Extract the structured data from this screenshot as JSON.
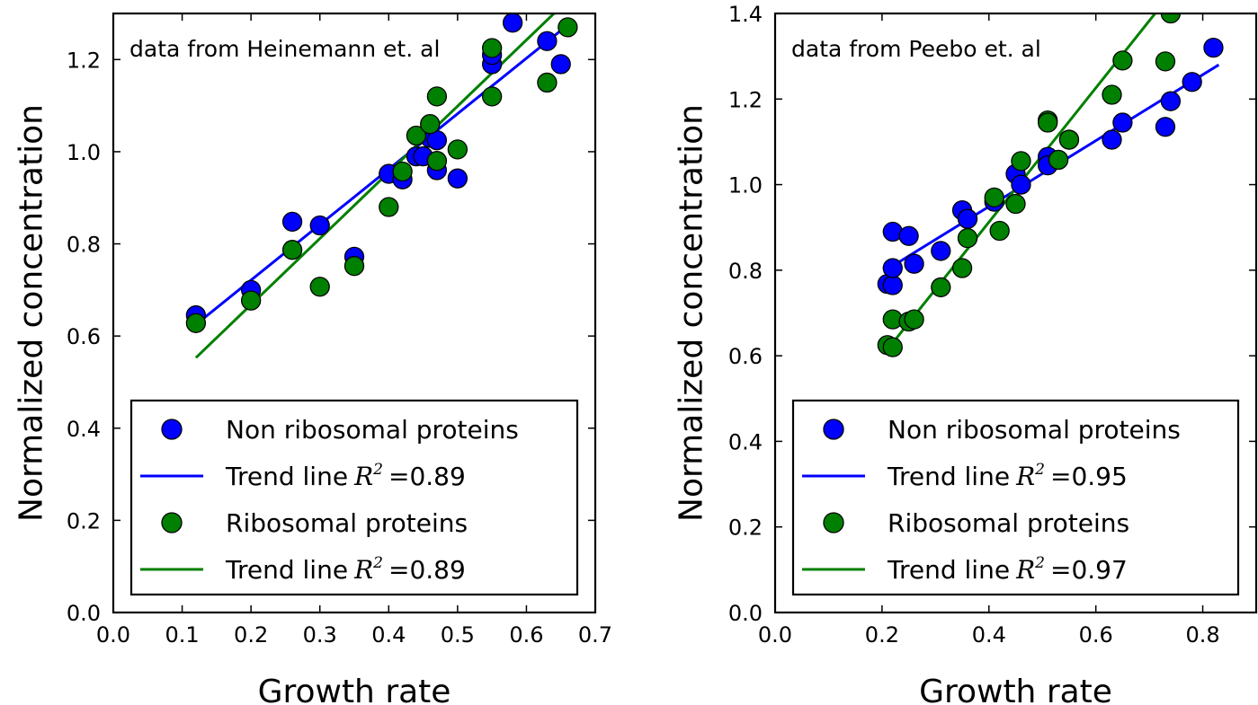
{
  "chart_data": [
    {
      "type": "scatter",
      "annotation": "data from Heinemann et. al",
      "xlabel": "Growth rate",
      "ylabel": "Normalized concentration",
      "xlim": [
        0.0,
        0.7
      ],
      "ylim": [
        0.0,
        1.3
      ],
      "xticks": [
        "0.0",
        "0.1",
        "0.2",
        "0.3",
        "0.4",
        "0.5",
        "0.6",
        "0.7"
      ],
      "yticks": [
        "0.0",
        "0.2",
        "0.4",
        "0.6",
        "0.8",
        "1.0",
        "1.2"
      ],
      "legend_position": "lower-right",
      "series": [
        {
          "name": "Non ribosomal proteins",
          "kind": "points",
          "color": "#0000ff",
          "points": [
            [
              0.12,
              0.645
            ],
            [
              0.2,
              0.7
            ],
            [
              0.26,
              0.848
            ],
            [
              0.3,
              0.84
            ],
            [
              0.35,
              0.772
            ],
            [
              0.4,
              0.952
            ],
            [
              0.42,
              0.94
            ],
            [
              0.44,
              0.99
            ],
            [
              0.45,
              0.99
            ],
            [
              0.46,
              1.03
            ],
            [
              0.47,
              1.025
            ],
            [
              0.47,
              0.96
            ],
            [
              0.5,
              0.942
            ],
            [
              0.55,
              1.19
            ],
            [
              0.55,
              1.21
            ],
            [
              0.58,
              1.28
            ],
            [
              0.63,
              1.24
            ],
            [
              0.65,
              1.19
            ]
          ]
        },
        {
          "name": "Trend line",
          "r2": "=0.89",
          "kind": "line",
          "color": "#0000ff",
          "points": [
            [
              0.12,
              0.625
            ],
            [
              0.66,
              1.275
            ]
          ]
        },
        {
          "name": "Ribosomal proteins",
          "kind": "points",
          "color": "#008000",
          "points": [
            [
              0.12,
              0.628
            ],
            [
              0.2,
              0.677
            ],
            [
              0.26,
              0.787
            ],
            [
              0.3,
              0.707
            ],
            [
              0.35,
              0.752
            ],
            [
              0.4,
              0.88
            ],
            [
              0.42,
              0.957
            ],
            [
              0.44,
              1.035
            ],
            [
              0.46,
              1.06
            ],
            [
              0.47,
              0.98
            ],
            [
              0.47,
              1.12
            ],
            [
              0.5,
              1.005
            ],
            [
              0.55,
              1.12
            ],
            [
              0.55,
              1.225
            ],
            [
              0.63,
              1.15
            ],
            [
              0.66,
              1.27
            ]
          ]
        },
        {
          "name": "Trend line",
          "r2": "=0.89",
          "kind": "line",
          "color": "#008000",
          "points": [
            [
              0.12,
              0.553
            ],
            [
              0.64,
              1.3
            ]
          ]
        }
      ]
    },
    {
      "type": "scatter",
      "annotation": "data from Peebo et. al",
      "xlabel": "Growth rate",
      "ylabel": "Normalized concentration",
      "xlim": [
        0.0,
        0.9
      ],
      "ylim": [
        0.0,
        1.4
      ],
      "xticks": [
        "0.0",
        "0.2",
        "0.4",
        "0.6",
        "0.8"
      ],
      "yticks": [
        "0.0",
        "0.2",
        "0.4",
        "0.6",
        "0.8",
        "1.0",
        "1.2",
        "1.4"
      ],
      "legend_position": "lower-right",
      "series": [
        {
          "name": "Non ribosomal proteins",
          "kind": "points",
          "color": "#0000ff",
          "points": [
            [
              0.21,
              0.768
            ],
            [
              0.22,
              0.765
            ],
            [
              0.22,
              0.805
            ],
            [
              0.22,
              0.89
            ],
            [
              0.25,
              0.88
            ],
            [
              0.26,
              0.815
            ],
            [
              0.31,
              0.845
            ],
            [
              0.35,
              0.94
            ],
            [
              0.36,
              0.92
            ],
            [
              0.41,
              0.96
            ],
            [
              0.45,
              1.025
            ],
            [
              0.46,
              1.0
            ],
            [
              0.51,
              1.065
            ],
            [
              0.51,
              1.045
            ],
            [
              0.55,
              1.105
            ],
            [
              0.63,
              1.105
            ],
            [
              0.65,
              1.145
            ],
            [
              0.73,
              1.135
            ],
            [
              0.74,
              1.195
            ],
            [
              0.78,
              1.24
            ],
            [
              0.82,
              1.32
            ]
          ]
        },
        {
          "name": "Trend line",
          "r2": "=0.95",
          "kind": "line",
          "color": "#0000ff",
          "points": [
            [
              0.22,
              0.81
            ],
            [
              0.83,
              1.28
            ]
          ]
        },
        {
          "name": "Ribosomal proteins",
          "kind": "points",
          "color": "#008000",
          "points": [
            [
              0.21,
              0.625
            ],
            [
              0.22,
              0.62
            ],
            [
              0.22,
              0.685
            ],
            [
              0.25,
              0.68
            ],
            [
              0.26,
              0.685
            ],
            [
              0.31,
              0.76
            ],
            [
              0.35,
              0.805
            ],
            [
              0.36,
              0.875
            ],
            [
              0.41,
              0.97
            ],
            [
              0.42,
              0.892
            ],
            [
              0.45,
              0.955
            ],
            [
              0.46,
              1.055
            ],
            [
              0.51,
              1.15
            ],
            [
              0.51,
              1.145
            ],
            [
              0.53,
              1.058
            ],
            [
              0.55,
              1.105
            ],
            [
              0.63,
              1.21
            ],
            [
              0.65,
              1.29
            ],
            [
              0.73,
              1.288
            ],
            [
              0.74,
              1.4
            ]
          ]
        },
        {
          "name": "Trend line",
          "r2": "=0.97",
          "kind": "line",
          "color": "#008000",
          "points": [
            [
              0.22,
              0.63
            ],
            [
              0.73,
              1.43
            ]
          ]
        }
      ]
    }
  ]
}
